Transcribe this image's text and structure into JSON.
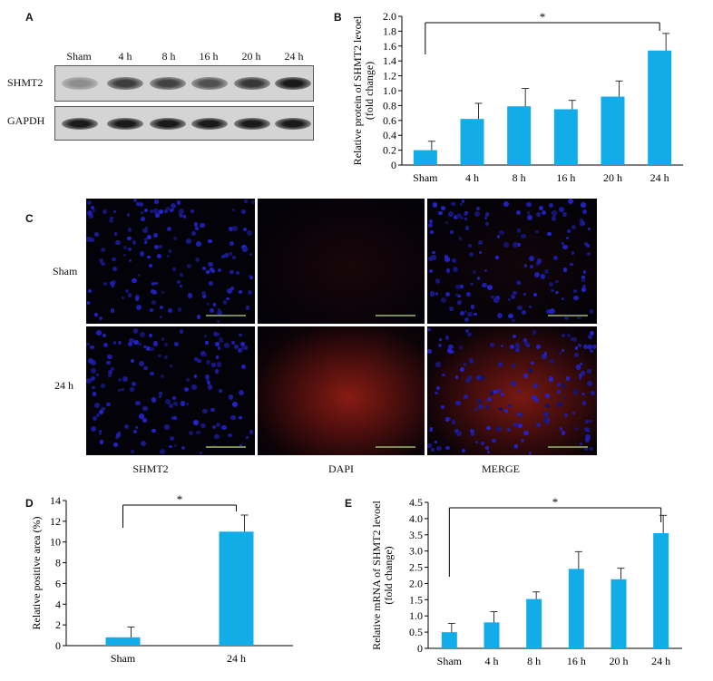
{
  "panels": {
    "A": "A",
    "B": "B",
    "C": "C",
    "D": "D",
    "E": "E"
  },
  "western_blot": {
    "lanes": [
      "Sham",
      "4 h",
      "8 h",
      "16 h",
      "20 h",
      "24 h"
    ],
    "rows": [
      {
        "label": "SHMT2",
        "intensity": [
          0.35,
          0.75,
          0.72,
          0.65,
          0.78,
          0.92
        ]
      },
      {
        "label": "GAPDH",
        "intensity": [
          0.92,
          0.92,
          0.92,
          0.92,
          0.92,
          0.92
        ]
      }
    ]
  },
  "microscopy": {
    "rows": [
      "Sham",
      "24 h"
    ],
    "columns": [
      "SHMT2",
      "DAPI",
      "MERGE"
    ]
  },
  "colors": {
    "bar": "#12ace8",
    "nuclei": "#2a2ad0",
    "signal": "#8a1a10"
  },
  "chart_data": [
    {
      "id": "B",
      "type": "bar",
      "categories": [
        "Sham",
        "4 h",
        "8 h",
        "16 h",
        "20 h",
        "24 h"
      ],
      "values": [
        0.2,
        0.62,
        0.79,
        0.75,
        0.92,
        1.54
      ],
      "errors": [
        0.12,
        0.21,
        0.24,
        0.12,
        0.21,
        0.23
      ],
      "ylabel": "Relative protein of SHMT2 levoel\n(fold change)",
      "ylim": [
        0,
        2.0
      ],
      "yticks": [
        "0",
        "0.2",
        "0.4",
        "0.6",
        "0.8",
        "1.0",
        "1.2",
        "1.4",
        "1.6",
        "1.8",
        "2.0"
      ],
      "significance": {
        "from": "Sham",
        "to": "24 h",
        "label": "*"
      },
      "grid": false
    },
    {
      "id": "D",
      "type": "bar",
      "categories": [
        "Sham",
        "24 h"
      ],
      "values": [
        0.8,
        11.0
      ],
      "errors": [
        1.0,
        1.6
      ],
      "ylabel": "Relative positive area (%)",
      "ylim": [
        0,
        14
      ],
      "yticks": [
        "0",
        "2",
        "4",
        "6",
        "8",
        "10",
        "12",
        "14"
      ],
      "significance": {
        "from": "Sham",
        "to": "24 h",
        "label": "*"
      },
      "grid": false
    },
    {
      "id": "E",
      "type": "bar",
      "categories": [
        "Sham",
        "4 h",
        "8 h",
        "16 h",
        "20 h",
        "24 h"
      ],
      "values": [
        0.5,
        0.8,
        1.52,
        2.45,
        2.13,
        3.55
      ],
      "errors": [
        0.27,
        0.33,
        0.22,
        0.53,
        0.34,
        0.55
      ],
      "ylabel": "Relative mRNA of SHMT2 levoel\n(fold change)",
      "ylim": [
        0,
        4.5
      ],
      "yticks": [
        "0",
        "0.5",
        "1.0",
        "1.5",
        "2.0",
        "2.5",
        "3.0",
        "3.5",
        "4.0",
        "4.5"
      ],
      "significance": {
        "from": "Sham",
        "to": "24 h",
        "label": "*"
      },
      "grid": false
    }
  ]
}
